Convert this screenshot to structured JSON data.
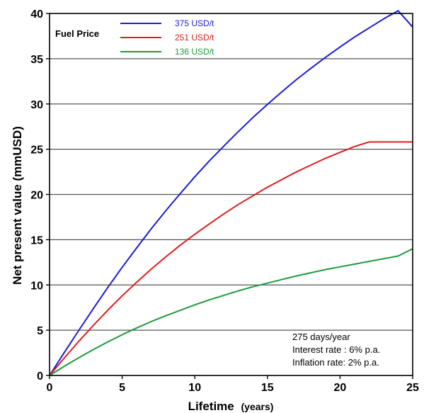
{
  "chart_data": {
    "type": "line",
    "xlabel": "Lifetime",
    "xlabel_unit": "(years)",
    "ylabel": "Net present value (mmUSD)",
    "xlim": [
      0,
      25
    ],
    "ylim": [
      0,
      40
    ],
    "x_ticks": [
      0,
      5,
      10,
      15,
      20,
      25
    ],
    "y_ticks": [
      0,
      5,
      10,
      15,
      20,
      25,
      30,
      35,
      40
    ],
    "grid": "horizontal",
    "legend": {
      "title": "Fuel Price",
      "placement": "top-left"
    },
    "x": [
      0,
      1,
      2,
      3,
      4,
      5,
      6,
      7,
      8,
      9,
      10,
      11,
      12,
      13,
      14,
      15,
      16,
      17,
      18,
      19,
      20,
      21,
      22,
      23,
      24,
      25
    ],
    "series": [
      {
        "name": "375 USD/t",
        "color": "#1c1cd8",
        "values": [
          0,
          2.5,
          4.95,
          7.35,
          9.7,
          11.95,
          14.1,
          16.2,
          18.2,
          20.1,
          21.95,
          23.7,
          25.35,
          26.95,
          28.5,
          29.95,
          31.35,
          32.7,
          33.95,
          35.15,
          36.3,
          37.4,
          38.4,
          39.4,
          40.3,
          38.5
        ]
      },
      {
        "name": "251 USD/t",
        "color": "#e01e1e",
        "values": [
          0,
          1.9,
          3.75,
          5.5,
          7.2,
          8.8,
          10.3,
          11.75,
          13.1,
          14.4,
          15.6,
          16.75,
          17.85,
          18.9,
          19.85,
          20.8,
          21.65,
          22.5,
          23.25,
          24.0,
          24.65,
          25.3,
          25.8,
          25.8,
          25.8,
          25.8
        ]
      },
      {
        "name": "136 USD/t",
        "color": "#1e9a3c",
        "values": [
          0,
          1.0,
          1.95,
          2.85,
          3.7,
          4.5,
          5.25,
          5.95,
          6.6,
          7.2,
          7.8,
          8.35,
          8.85,
          9.35,
          9.8,
          10.2,
          10.6,
          11.0,
          11.35,
          11.7,
          12.0,
          12.3,
          12.6,
          12.9,
          13.2,
          14.0
        ]
      }
    ],
    "annotations": [
      "275 days/year",
      "Interest rate : 6% p.a.",
      "Inflation rate: 2% p.a."
    ]
  }
}
